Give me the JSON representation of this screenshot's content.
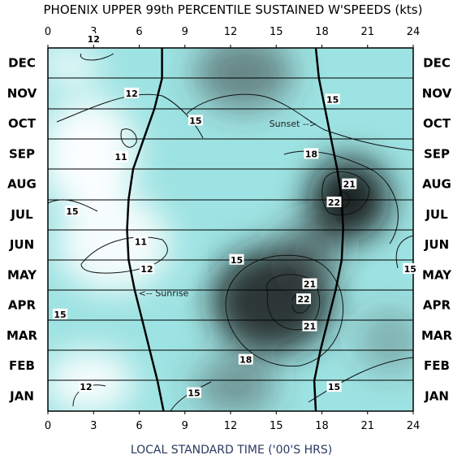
{
  "chart_data": {
    "type": "heatmap",
    "title": "PHOENIX UPPER 99th PERCENTILE SUSTAINED W'SPEEDS (kts)",
    "xlabel": "LOCAL STANDARD TIME ('00'S HRS)",
    "xlim": [
      0,
      24
    ],
    "x_ticks": [
      "0",
      "3",
      "6",
      "9",
      "12",
      "15",
      "18",
      "21",
      "24"
    ],
    "months": [
      "DEC",
      "NOV",
      "OCT",
      "SEP",
      "AUG",
      "JUL",
      "JUN",
      "MAY",
      "APR",
      "MAR",
      "FEB",
      "JAN"
    ],
    "color_scale": {
      "low": "#ffffff",
      "mid": "#7ad7d7",
      "high": "#1a1a1a"
    },
    "cells": [
      {
        "month": "JAN",
        "x": 0,
        "v": 13
      },
      {
        "month": "JAN",
        "x": 12,
        "v": 15
      },
      {
        "month": "JAN",
        "x": 16,
        "v": 17
      },
      {
        "month": "MAR",
        "x": 15,
        "v": 20
      },
      {
        "month": "APR",
        "x": 16,
        "v": 22
      },
      {
        "month": "MAY",
        "x": 17,
        "v": 20
      },
      {
        "month": "JUN",
        "x": 5,
        "v": 11
      },
      {
        "month": "JUL",
        "x": 19,
        "v": 22
      },
      {
        "month": "AUG",
        "x": 20,
        "v": 21
      },
      {
        "month": "OCT",
        "x": 5,
        "v": 11
      },
      {
        "month": "DEC",
        "x": 14,
        "v": 17
      }
    ],
    "contour_labels": [
      {
        "value": "12",
        "month_pos": 12.3,
        "x": 3
      },
      {
        "value": "12",
        "month_pos": 10.5,
        "x": 5.5
      },
      {
        "value": "15",
        "month_pos": 9.6,
        "x": 9.7
      },
      {
        "value": "15",
        "month_pos": 10.3,
        "x": 18.7
      },
      {
        "value": "11",
        "month_pos": 8.4,
        "x": 4.8
      },
      {
        "value": "18",
        "month_pos": 8.5,
        "x": 17.3
      },
      {
        "value": "21",
        "month_pos": 7.5,
        "x": 19.8
      },
      {
        "value": "22",
        "month_pos": 6.9,
        "x": 18.8
      },
      {
        "value": "15",
        "month_pos": 6.6,
        "x": 1.6
      },
      {
        "value": "11",
        "month_pos": 5.6,
        "x": 6.1
      },
      {
        "value": "15",
        "month_pos": 5.0,
        "x": 12.4
      },
      {
        "value": "12",
        "month_pos": 4.7,
        "x": 6.5
      },
      {
        "value": "15",
        "month_pos": 4.7,
        "x": 23.8
      },
      {
        "value": "21",
        "month_pos": 4.2,
        "x": 17.2
      },
      {
        "value": "22",
        "month_pos": 3.7,
        "x": 16.8
      },
      {
        "value": "15",
        "month_pos": 3.2,
        "x": 0.8
      },
      {
        "value": "21",
        "month_pos": 2.8,
        "x": 17.2
      },
      {
        "value": "18",
        "month_pos": 1.7,
        "x": 13
      },
      {
        "value": "12",
        "month_pos": 0.8,
        "x": 2.5
      },
      {
        "value": "15",
        "month_pos": 0.6,
        "x": 9.6
      },
      {
        "value": "15",
        "month_pos": 0.8,
        "x": 18.8
      }
    ],
    "annotations": [
      {
        "text": "Sunset -->",
        "month_pos": 9.5,
        "x": 16.1
      },
      {
        "text": "<-- Sunrise",
        "month_pos": 3.9,
        "x": 7.6
      }
    ],
    "sunrise_hours": [
      7.5,
      7.5,
      7.0,
      6.3,
      5.6,
      5.3,
      5.2,
      5.3,
      5.7,
      6.2,
      6.7,
      7.2,
      7.6
    ],
    "sunset_hours": [
      17.6,
      17.8,
      18.2,
      18.6,
      19.0,
      19.3,
      19.4,
      19.3,
      18.9,
      18.4,
      17.9,
      17.5,
      17.6
    ]
  }
}
